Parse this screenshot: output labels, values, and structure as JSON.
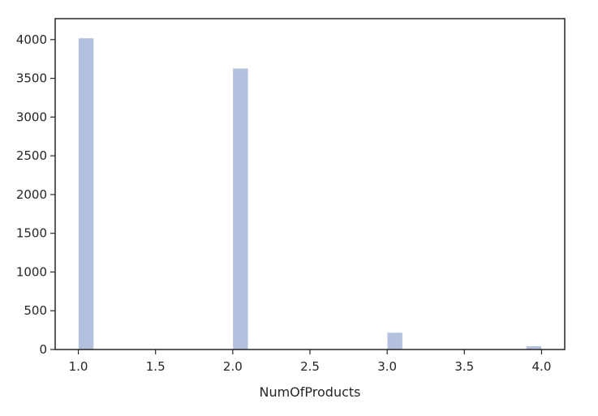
{
  "chart_data": {
    "type": "bar",
    "title": "",
    "xlabel": "NumOfProducts",
    "ylabel": "",
    "xlim": [
      0.85,
      4.15
    ],
    "ylim": [
      0,
      4270
    ],
    "x_ticks": [
      1.0,
      1.5,
      2.0,
      2.5,
      3.0,
      3.5,
      4.0
    ],
    "x_tick_labels": [
      "1.0",
      "1.5",
      "2.0",
      "2.5",
      "3.0",
      "3.5",
      "4.0"
    ],
    "y_ticks": [
      0,
      500,
      1000,
      1500,
      2000,
      2500,
      3000,
      3500,
      4000
    ],
    "y_tick_labels": [
      "0",
      "500",
      "1000",
      "1500",
      "2000",
      "2500",
      "3000",
      "3500",
      "4000"
    ],
    "bin_width": 0.1,
    "bins": [
      {
        "x_start": 1.0,
        "x_end": 1.1,
        "value": 4020
      },
      {
        "x_start": 2.0,
        "x_end": 2.1,
        "value": 3630
      },
      {
        "x_start": 3.0,
        "x_end": 3.1,
        "value": 220
      },
      {
        "x_start": 3.9,
        "x_end": 4.0,
        "value": 45
      }
    ],
    "bar_color": "#b3c1df",
    "grid": false,
    "legend": "none"
  }
}
